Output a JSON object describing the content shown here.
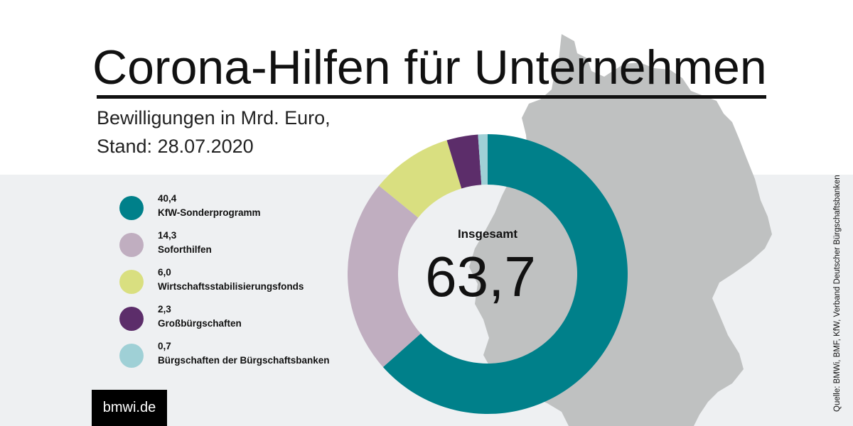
{
  "header": {
    "title": "Corona-Hilfen für Unternehmen",
    "subtitle_line1": "Bewilligungen in Mrd. Euro,",
    "subtitle_line2": "Stand: 28.07.2020"
  },
  "chart_data": {
    "type": "pie",
    "donut": true,
    "unit": "Mrd. Euro",
    "total_label": "Insgesamt",
    "total_value": "63,7",
    "slices": [
      {
        "value": 40.4,
        "label_value": "40,4",
        "name": "KfW-Sonderprogramm",
        "color": "#00808a"
      },
      {
        "value": 14.3,
        "label_value": "14,3",
        "name": "Soforthilfen",
        "color": "#c0aec0"
      },
      {
        "value": 6.0,
        "label_value": "6,0",
        "name": "Wirtschaftsstabilisierungsfonds",
        "color": "#d9df80"
      },
      {
        "value": 2.3,
        "label_value": "2,3",
        "name": "Großbürgschaften",
        "color": "#5c2d6a"
      },
      {
        "value": 0.7,
        "label_value": "0,7",
        "name": "Bürgschaften der Bürgschaftsbanken",
        "color": "#9fd0d6"
      }
    ],
    "legend_position": "left"
  },
  "footer": {
    "logo_text": "bmwi.de",
    "source": "Quelle: BMWi, BMF, KfW, Verband Deutscher Bürgschaftsbanken"
  },
  "colors": {
    "map": "#bfc1c1",
    "background_band": "#eef0f2"
  }
}
